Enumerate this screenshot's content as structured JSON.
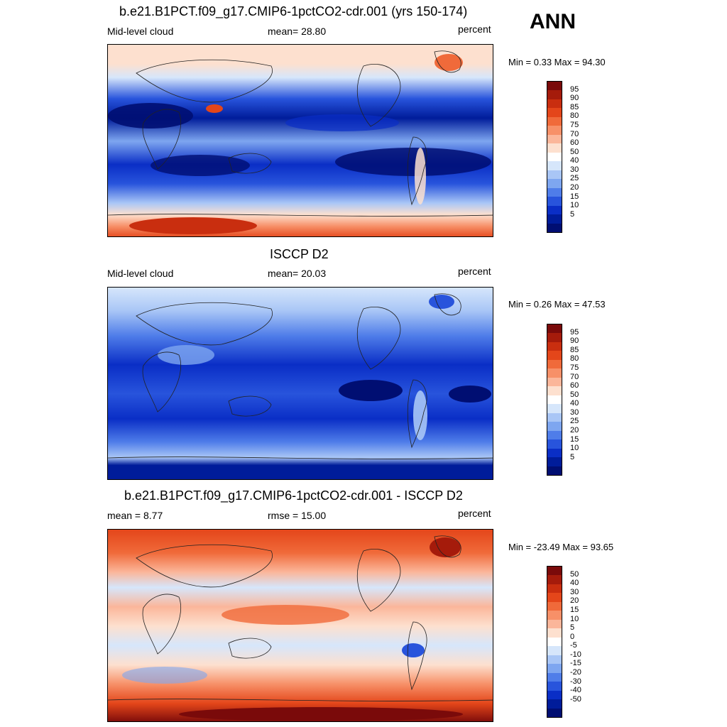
{
  "season": "ANN",
  "panels": [
    {
      "title": "b.e21.B1PCT.f09_g17.CMIP6-1pctCO2-cdr.001 (yrs 150-174)",
      "left_label": "Mid-level cloud",
      "center_label": "mean=  28.80",
      "right_label": "percent",
      "minmax": "Min =   0.33 Max =  94.30",
      "colorbar": {
        "labels": [
          "95",
          "90",
          "85",
          "80",
          "75",
          "70",
          "60",
          "50",
          "40",
          "30",
          "25",
          "20",
          "15",
          "10",
          "5"
        ],
        "colors": [
          "#7a0a0a",
          "#a51b0b",
          "#c92e0f",
          "#e4461a",
          "#f06a3a",
          "#f79068",
          "#fbb69a",
          "#fde0cf",
          "#ffffff",
          "#d6e6fb",
          "#a9c6f6",
          "#7ea6f0",
          "#4f7de9",
          "#2854dc",
          "#0a2ec6",
          "#001c9a",
          "#000e72"
        ]
      },
      "colors": {
        "base": "#2854dc",
        "deep": "#001c9a",
        "light": "#d6e6fb",
        "warm": "#fde0cf",
        "hot": "#e4461a"
      }
    },
    {
      "title": "ISCCP D2",
      "left_label": "Mid-level cloud",
      "center_label": "mean=  20.03",
      "right_label": "percent",
      "minmax": "Min =   0.26 Max =  47.53",
      "colorbar": {
        "labels": [
          "95",
          "90",
          "85",
          "80",
          "75",
          "70",
          "60",
          "50",
          "40",
          "30",
          "25",
          "20",
          "15",
          "10",
          "5"
        ],
        "colors": [
          "#7a0a0a",
          "#a51b0b",
          "#c92e0f",
          "#e4461a",
          "#f06a3a",
          "#f79068",
          "#fbb69a",
          "#fde0cf",
          "#ffffff",
          "#d6e6fb",
          "#a9c6f6",
          "#7ea6f0",
          "#4f7de9",
          "#2854dc",
          "#0a2ec6",
          "#001c9a",
          "#000e72"
        ]
      },
      "colors": {
        "base": "#2854dc",
        "deep": "#001c9a",
        "light": "#a9c6f6"
      }
    },
    {
      "title": "b.e21.B1PCT.f09_g17.CMIP6-1pctCO2-cdr.001 - ISCCP D2",
      "left_label": "mean =   8.77",
      "center_label": "rmse =  15.00",
      "right_label": "percent",
      "minmax": "Min = -23.49 Max =  93.65",
      "colorbar": {
        "labels": [
          "50",
          "40",
          "30",
          "20",
          "15",
          "10",
          "5",
          "0",
          "-5",
          "-10",
          "-15",
          "-20",
          "-30",
          "-40",
          "-50"
        ],
        "colors": [
          "#7a0a0a",
          "#a51b0b",
          "#c92e0f",
          "#e4461a",
          "#f06a3a",
          "#f79068",
          "#fbb69a",
          "#fde0cf",
          "#ffffff",
          "#d6e6fb",
          "#a9c6f6",
          "#7ea6f0",
          "#4f7de9",
          "#2854dc",
          "#0a2ec6",
          "#001c9a",
          "#000e72"
        ]
      },
      "colors": {
        "base": "#fbb69a",
        "red": "#e4461a",
        "dark": "#a51b0b",
        "light": "#d6e6fb",
        "blue": "#4f7de9"
      }
    }
  ]
}
